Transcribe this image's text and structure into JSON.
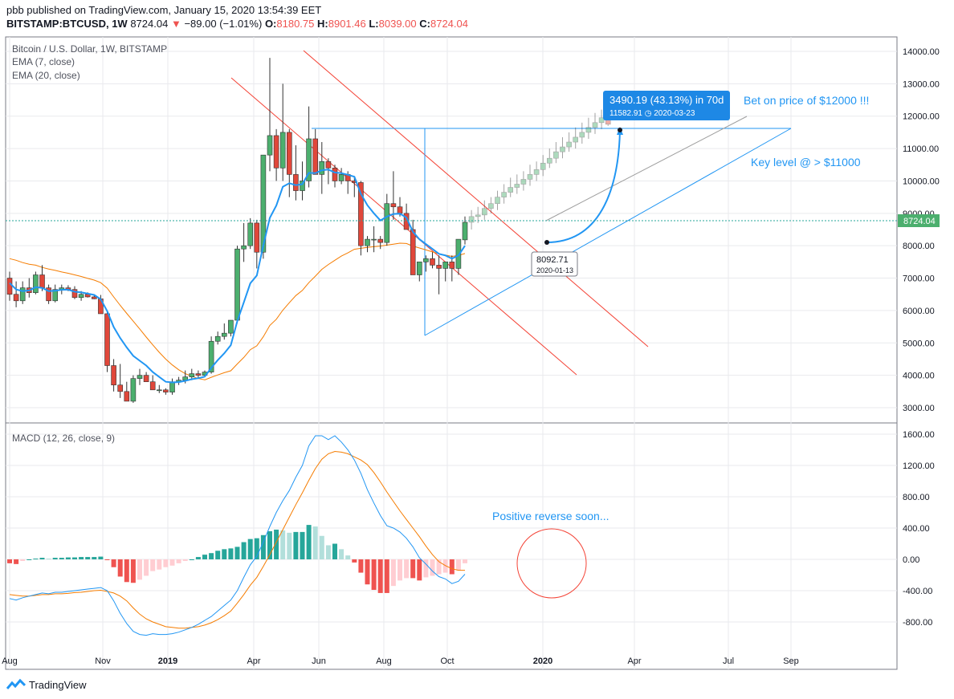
{
  "header": {
    "published": "pbb published on TradingView.com, January 15, 2020 13:54:39 EET",
    "symbol": "BITSTAMP:BTCUSD, 1W",
    "last": "8724.04",
    "change": "−89.00 (−1.01%)",
    "o_label": "O:",
    "o": "8180.75",
    "h_label": "H:",
    "h": "8901.46",
    "l_label": "L:",
    "l": "8039.00",
    "c_label": "C:",
    "c": "8724.04"
  },
  "legend": {
    "title": "Bitcoin / U.S. Dollar, 1W, BITSTAMP",
    "ema7": "EMA (7, close)",
    "ema20": "EMA (20, close)",
    "macd": "MACD (12, 26, close, 9)"
  },
  "annotations": {
    "measure_main": "3490.19 (43.13%) in 70d",
    "measure_sub": "11582.91 ◷ 2020-03-23",
    "bet": "Bet on price of $12000 !!!",
    "key_level": "Key level @ > $11000",
    "reverse": "Positive reverse soon...",
    "point_value": "8092.71",
    "point_date": "2020-01-13",
    "last_price_tag": "8724.04"
  },
  "colors": {
    "up": "#26a69a",
    "down": "#ef5350",
    "candle_up": "#4caf6e",
    "candle_down": "#e0473a",
    "ema7": "#2196f3",
    "ema20": "#f57c00",
    "trend": "#f44336",
    "blue": "#2196f3",
    "hist_up_strong": "#26a69a",
    "hist_up_weak": "#b2dfdb",
    "hist_down_strong": "#ef5350",
    "hist_down_weak": "#ffcdd2",
    "grid": "#e9eaed"
  },
  "footer": {
    "brand": "TradingView"
  },
  "chart_data": [
    {
      "type": "candlestick",
      "title": "Bitcoin / U.S. Dollar, 1W, BITSTAMP",
      "x_ticks": [
        "Aug",
        "Nov",
        "2019",
        "Apr",
        "Jun",
        "Aug",
        "Oct",
        "2020",
        "Apr",
        "Jul",
        "Sep"
      ],
      "y_ticks": [
        3000,
        4000,
        5000,
        6000,
        7000,
        8000,
        9000,
        10000,
        11000,
        12000,
        13000,
        14000
      ],
      "ylim": [
        2700,
        14200
      ],
      "grid": true,
      "price_line": 8724.04,
      "candles_ohlc": [
        [
          7000,
          7200,
          6300,
          6500
        ],
        [
          6500,
          6900,
          6100,
          6300
        ],
        [
          6300,
          6900,
          6200,
          6700
        ],
        [
          6700,
          7000,
          6400,
          6550
        ],
        [
          6550,
          7200,
          6500,
          7100
        ],
        [
          7100,
          7400,
          6600,
          6700
        ],
        [
          6700,
          6800,
          6200,
          6300
        ],
        [
          6300,
          6800,
          6250,
          6650
        ],
        [
          6650,
          6800,
          6500,
          6700
        ],
        [
          6700,
          6780,
          6600,
          6650
        ],
        [
          6650,
          6750,
          6350,
          6400
        ],
        [
          6400,
          6600,
          6300,
          6500
        ],
        [
          6500,
          6560,
          6400,
          6420
        ],
        [
          6420,
          6480,
          6350,
          6360
        ],
        [
          6360,
          6480,
          5900,
          5900
        ],
        [
          5900,
          5950,
          4100,
          4300
        ],
        [
          4300,
          4500,
          3500,
          3700
        ],
        [
          3700,
          4350,
          3300,
          3500
        ],
        [
          3500,
          3800,
          3200,
          3200
        ],
        [
          3200,
          4000,
          3150,
          3900
        ],
        [
          3900,
          4200,
          3700,
          4000
        ],
        [
          4000,
          4100,
          3800,
          3800
        ],
        [
          3800,
          4000,
          3550,
          3550
        ],
        [
          3550,
          3700,
          3450,
          3550
        ],
        [
          3550,
          3600,
          3400,
          3480
        ],
        [
          3480,
          3900,
          3400,
          3800
        ],
        [
          3800,
          3950,
          3700,
          3850
        ],
        [
          3850,
          4150,
          3750,
          3950
        ],
        [
          3950,
          4200,
          3850,
          4050
        ],
        [
          4050,
          4150,
          3900,
          4000
        ],
        [
          4000,
          4150,
          3950,
          4100
        ],
        [
          4100,
          5200,
          4050,
          5050
        ],
        [
          5050,
          5350,
          4950,
          5200
        ],
        [
          5200,
          5600,
          5100,
          5300
        ],
        [
          5300,
          5700,
          5200,
          5700
        ],
        [
          5700,
          8000,
          5600,
          7900
        ],
        [
          7900,
          8700,
          7500,
          8000
        ],
        [
          8000,
          8850,
          7900,
          8700
        ],
        [
          8700,
          8800,
          7300,
          7800
        ],
        [
          7800,
          10800,
          7600,
          10800
        ],
        [
          10800,
          13800,
          10300,
          11400
        ],
        [
          11400,
          11600,
          10000,
          10400
        ],
        [
          10400,
          13000,
          10000,
          11500
        ],
        [
          11500,
          11600,
          9500,
          10200
        ],
        [
          10200,
          11100,
          9400,
          9700
        ],
        [
          9700,
          10600,
          9400,
          10000
        ],
        [
          10000,
          12300,
          9800,
          11300
        ],
        [
          11300,
          11600,
          10200,
          10200
        ],
        [
          10200,
          11200,
          9600,
          10600
        ],
        [
          10600,
          10700,
          9900,
          10400
        ],
        [
          10400,
          10500,
          9800,
          10000
        ],
        [
          10000,
          10400,
          9900,
          10200
        ],
        [
          10200,
          10300,
          9600,
          10000
        ],
        [
          10000,
          10100,
          9500,
          9950
        ],
        [
          9950,
          10000,
          7700,
          8000
        ],
        [
          8000,
          8300,
          7800,
          8200
        ],
        [
          8200,
          8600,
          7800,
          8200
        ],
        [
          8200,
          8300,
          7900,
          8100
        ],
        [
          8100,
          9600,
          8000,
          9300
        ],
        [
          9300,
          10300,
          8800,
          9200
        ],
        [
          9200,
          9500,
          8900,
          9000
        ],
        [
          9000,
          9300,
          8500,
          8500
        ],
        [
          8500,
          8800,
          7100,
          7100
        ],
        [
          7100,
          7500,
          6900,
          7500
        ],
        [
          7500,
          7700,
          7200,
          7600
        ],
        [
          7600,
          7800,
          7300,
          7400
        ],
        [
          7400,
          7700,
          6500,
          7300
        ],
        [
          7300,
          7500,
          6900,
          7500
        ],
        [
          7500,
          7700,
          6900,
          7300
        ],
        [
          7300,
          8200,
          7100,
          8200
        ],
        [
          8180.75,
          8901.46,
          8039,
          8724.04
        ]
      ],
      "projection_ohlc": [
        [
          8724,
          9100,
          8500,
          8900
        ],
        [
          8900,
          9200,
          8700,
          8950
        ],
        [
          8950,
          9400,
          8800,
          9150
        ],
        [
          9150,
          9500,
          9000,
          9300
        ],
        [
          9300,
          9700,
          9100,
          9500
        ],
        [
          9500,
          9900,
          9300,
          9650
        ],
        [
          9650,
          10100,
          9500,
          9800
        ],
        [
          9800,
          10200,
          9600,
          9900
        ],
        [
          9900,
          10300,
          9700,
          10050
        ],
        [
          10050,
          10500,
          9850,
          10200
        ],
        [
          10200,
          10600,
          10000,
          10350
        ],
        [
          10350,
          10800,
          10150,
          10550
        ],
        [
          10550,
          11000,
          10400,
          10700
        ],
        [
          10700,
          11200,
          10550,
          10900
        ],
        [
          10900,
          11350,
          10700,
          11050
        ],
        [
          11050,
          11500,
          10900,
          11200
        ],
        [
          11200,
          11650,
          11000,
          11350
        ],
        [
          11350,
          11800,
          11150,
          11500
        ],
        [
          11500,
          11950,
          11300,
          11650
        ],
        [
          11650,
          12100,
          11450,
          11800
        ],
        [
          11800,
          12200,
          11600,
          11950
        ],
        [
          11950,
          12300,
          11700,
          11750
        ]
      ],
      "ema7": [
        6850,
        6650,
        6600,
        6620,
        6720,
        6700,
        6600,
        6610,
        6640,
        6645,
        6580,
        6560,
        6520,
        6480,
        6350,
        5980,
        5490,
        5150,
        4860,
        4600,
        4450,
        4300,
        4100,
        3950,
        3800,
        3780,
        3790,
        3830,
        3880,
        3910,
        3960,
        4230,
        4470,
        4680,
        4930,
        5670,
        6250,
        6840,
        7080,
        8010,
        8860,
        9240,
        9820,
        9930,
        9870,
        9900,
        10250,
        10240,
        10330,
        10350,
        10260,
        10240,
        10190,
        10130,
        9600,
        9250,
        9000,
        8780,
        8900,
        8980,
        8990,
        8870,
        8430,
        8200,
        8050,
        7900,
        7750,
        7700,
        7600,
        7700,
        8000
      ],
      "ema20": [
        7600,
        7550,
        7480,
        7430,
        7400,
        7330,
        7280,
        7240,
        7190,
        7150,
        7100,
        7050,
        6990,
        6940,
        6860,
        6690,
        6420,
        6160,
        5910,
        5670,
        5430,
        5180,
        4940,
        4710,
        4500,
        4320,
        4170,
        4050,
        3970,
        3900,
        3860,
        3940,
        4010,
        4080,
        4140,
        4350,
        4550,
        4790,
        4910,
        5190,
        5540,
        5730,
        6010,
        6240,
        6460,
        6620,
        6860,
        7060,
        7270,
        7420,
        7550,
        7680,
        7780,
        7890,
        7920,
        7950,
        7970,
        7990,
        8020,
        8050,
        8080,
        8070,
        7990,
        7930,
        7870,
        7810,
        7750,
        7710,
        7670,
        7700,
        7760
      ]
    },
    {
      "type": "bar",
      "title": "MACD (12, 26, close, 9)",
      "y_ticks": [
        -800,
        -400,
        0,
        400,
        800,
        1200,
        1600
      ],
      "ylim": [
        -1130,
        1660
      ],
      "series": [
        {
          "name": "MACD",
          "values": [
            -500,
            -520,
            -490,
            -470,
            -450,
            -430,
            -440,
            -420,
            -420,
            -410,
            -400,
            -390,
            -380,
            -370,
            -360,
            -400,
            -530,
            -690,
            -820,
            -920,
            -960,
            -970,
            -950,
            -960,
            -960,
            -950,
            -930,
            -900,
            -870,
            -830,
            -780,
            -730,
            -660,
            -590,
            -520,
            -400,
            -230,
            -70,
            40,
            220,
            420,
            600,
            750,
            880,
            1050,
            1200,
            1450,
            1580,
            1580,
            1530,
            1580,
            1500,
            1400,
            1270,
            1100,
            890,
            720,
            560,
            430,
            400,
            350,
            270,
            160,
            20,
            -60,
            -150,
            -220,
            -250,
            -310,
            -280,
            -190
          ]
        },
        {
          "name": "Signal",
          "values": [
            -450,
            -460,
            -470,
            -470,
            -460,
            -450,
            -450,
            -440,
            -440,
            -435,
            -425,
            -420,
            -410,
            -400,
            -395,
            -410,
            -430,
            -470,
            -530,
            -620,
            -700,
            -760,
            -800,
            -830,
            -860,
            -870,
            -880,
            -880,
            -870,
            -860,
            -840,
            -810,
            -770,
            -720,
            -660,
            -560,
            -450,
            -330,
            -230,
            -90,
            60,
            220,
            380,
            540,
            700,
            850,
            1010,
            1160,
            1280,
            1350,
            1380,
            1370,
            1350,
            1310,
            1270,
            1210,
            1110,
            990,
            860,
            740,
            620,
            510,
            400,
            290,
            170,
            60,
            -30,
            -80,
            -120,
            -140,
            -140
          ]
        },
        {
          "name": "Histogram",
          "values": [
            -50,
            -60,
            -20,
            0,
            10,
            20,
            10,
            20,
            20,
            25,
            25,
            30,
            30,
            30,
            35,
            -10,
            -100,
            -220,
            -290,
            -300,
            -260,
            -210,
            -150,
            -130,
            -100,
            -80,
            -50,
            -20,
            0,
            30,
            60,
            80,
            110,
            130,
            140,
            160,
            220,
            260,
            270,
            310,
            360,
            380,
            370,
            340,
            350,
            350,
            440,
            420,
            300,
            180,
            200,
            130,
            50,
            -40,
            -170,
            -320,
            -390,
            -430,
            -430,
            -340,
            -270,
            -240,
            -240,
            -270,
            -230,
            -210,
            -190,
            -170,
            -190,
            -140,
            -50
          ]
        }
      ],
      "annotation": "Positive reverse soon..."
    }
  ]
}
